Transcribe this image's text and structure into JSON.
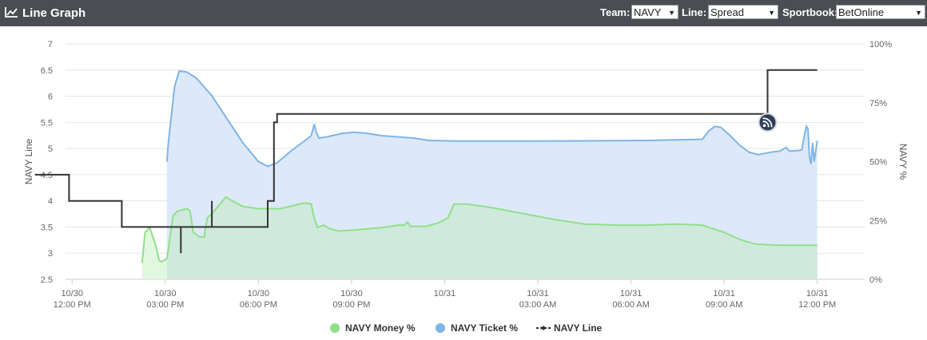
{
  "header": {
    "title": "Line Graph",
    "icon": "line-chart-icon",
    "team_label": "Team:",
    "team_value": "NAVY",
    "line_label": "Line:",
    "line_value": "Spread",
    "sportsbook_label": "Sportbook:",
    "sportsbook_value": "BetOnline"
  },
  "colors": {
    "header_bg": "#4a4d52",
    "money": "#90e08a",
    "money_fill": "#cfe9dd",
    "money_fill_early": "#e2f7df",
    "ticket": "#7fb5e6",
    "ticket_fill": "#dde9f8",
    "line": "#333333",
    "grid": "#e6e6e6"
  },
  "chart_data": {
    "type": "line",
    "xlabel": "",
    "ylabel_left": "NAVY Line",
    "ylabel_right": "NAVY %",
    "y_left_range": [
      2.5,
      7
    ],
    "y_left_ticks": [
      "2.5",
      "3",
      "3.5",
      "4",
      "4.5",
      "5",
      "5.5",
      "6",
      "6.5",
      "7"
    ],
    "y_right_range": [
      0,
      100
    ],
    "y_right_ticks": [
      "0%",
      "25%",
      "50%",
      "75%",
      "100%"
    ],
    "x_range_hours": [
      0,
      48
    ],
    "x_ticks": [
      {
        "t": 1.5,
        "l1": "10/30",
        "l2": "12:00 PM"
      },
      {
        "t": 4.5,
        "l1": "10/30",
        "l2": "03:00 PM"
      },
      {
        "t": 7.5,
        "l1": "10/30",
        "l2": "06:00 PM"
      },
      {
        "t": 10.5,
        "l1": "10/30",
        "l2": "09:00 PM"
      },
      {
        "t": 13.5,
        "l1": "10/31",
        "l2": ""
      },
      {
        "t": 16.5,
        "l1": "10/31",
        "l2": "03:00 AM"
      },
      {
        "t": 19.5,
        "l1": "10/31",
        "l2": "06:00 AM"
      },
      {
        "t": 22.5,
        "l1": "10/31",
        "l2": "09:00 AM"
      },
      {
        "t": 25.5,
        "l1": "10/31",
        "l2": "12:00 PM"
      }
    ],
    "grid": true,
    "legend_position": "bottom",
    "series": [
      {
        "name": "NAVY Money %",
        "axis": "right",
        "points": [
          [
            3.75,
            7
          ],
          [
            3.85,
            20
          ],
          [
            4.0,
            22
          ],
          [
            4.2,
            14
          ],
          [
            4.3,
            8
          ],
          [
            4.4,
            7.5
          ],
          [
            4.55,
            9
          ],
          [
            4.6,
            13
          ],
          [
            4.75,
            27
          ],
          [
            4.9,
            29
          ],
          [
            5.2,
            30
          ],
          [
            5.3,
            29
          ],
          [
            5.4,
            20
          ],
          [
            5.6,
            18
          ],
          [
            5.75,
            18
          ],
          [
            5.85,
            26
          ],
          [
            6.0,
            28
          ],
          [
            6.2,
            31
          ],
          [
            6.45,
            35
          ],
          [
            6.7,
            33
          ],
          [
            7.0,
            31
          ],
          [
            7.5,
            30
          ],
          [
            8.2,
            30
          ],
          [
            9.0,
            32.5
          ],
          [
            9.2,
            32
          ],
          [
            9.3,
            26
          ],
          [
            9.4,
            22
          ],
          [
            9.6,
            23
          ],
          [
            9.8,
            21.5
          ],
          [
            10.1,
            20.5
          ],
          [
            10.6,
            21
          ],
          [
            11.5,
            22
          ],
          [
            12.0,
            23
          ],
          [
            12.2,
            23
          ],
          [
            12.3,
            24.3
          ],
          [
            12.4,
            22.5
          ],
          [
            12.9,
            22.5
          ],
          [
            13.3,
            24
          ],
          [
            13.6,
            26
          ],
          [
            13.8,
            32
          ],
          [
            14.2,
            32
          ],
          [
            15.0,
            30.5
          ],
          [
            16.0,
            28
          ],
          [
            17.0,
            25.5
          ],
          [
            18.0,
            23.5
          ],
          [
            19.0,
            23
          ],
          [
            20.0,
            23
          ],
          [
            21.0,
            23.5
          ],
          [
            21.8,
            23
          ],
          [
            22.5,
            20
          ],
          [
            23.0,
            17
          ],
          [
            23.5,
            15
          ],
          [
            24.2,
            14.5
          ],
          [
            25.0,
            14.5
          ],
          [
            25.5,
            14.5
          ]
        ]
      },
      {
        "name": "NAVY Ticket %",
        "axis": "right",
        "points": [
          [
            4.55,
            50
          ],
          [
            4.6,
            58
          ],
          [
            4.8,
            82
          ],
          [
            4.95,
            88.5
          ],
          [
            5.2,
            88
          ],
          [
            5.5,
            85.5
          ],
          [
            6.0,
            78
          ],
          [
            6.5,
            68
          ],
          [
            7.0,
            58
          ],
          [
            7.5,
            50
          ],
          [
            7.8,
            48
          ],
          [
            8.1,
            49.5
          ],
          [
            8.5,
            54
          ],
          [
            9.0,
            59
          ],
          [
            9.2,
            61
          ],
          [
            9.3,
            66
          ],
          [
            9.35,
            63
          ],
          [
            9.45,
            60
          ],
          [
            9.7,
            60.5
          ],
          [
            10.2,
            62
          ],
          [
            10.6,
            62.5
          ],
          [
            11.0,
            62
          ],
          [
            11.5,
            61
          ],
          [
            12.0,
            60.5
          ],
          [
            12.5,
            60
          ],
          [
            13.0,
            59
          ],
          [
            14.0,
            58.7
          ],
          [
            16.0,
            58.7
          ],
          [
            18.0,
            58.8
          ],
          [
            20.0,
            59
          ],
          [
            21.8,
            59.5
          ],
          [
            22.0,
            63
          ],
          [
            22.2,
            65
          ],
          [
            22.4,
            64.5
          ],
          [
            22.7,
            61
          ],
          [
            23.0,
            57
          ],
          [
            23.3,
            54
          ],
          [
            23.6,
            53
          ],
          [
            24.0,
            54
          ],
          [
            24.3,
            54.5
          ],
          [
            24.5,
            56
          ],
          [
            24.6,
            54.5
          ],
          [
            24.9,
            54.7
          ],
          [
            25.0,
            55
          ],
          [
            25.1,
            62
          ],
          [
            25.15,
            65
          ],
          [
            25.2,
            64
          ],
          [
            25.25,
            52
          ],
          [
            25.3,
            49
          ],
          [
            25.35,
            58
          ],
          [
            25.4,
            50
          ],
          [
            25.5,
            59
          ]
        ]
      },
      {
        "name": "NAVY Line",
        "axis": "left",
        "points": [
          [
            0.3,
            4.5
          ],
          [
            1.4,
            4.5
          ],
          [
            1.4,
            4.0
          ],
          [
            3.1,
            4.0
          ],
          [
            3.1,
            3.5
          ],
          [
            4.6,
            3.5
          ],
          [
            4.6,
            3.5
          ],
          [
            5.0,
            3.5
          ],
          [
            5.0,
            3.0
          ],
          [
            5.0,
            3.5
          ],
          [
            6.0,
            3.5
          ],
          [
            6.0,
            4.0
          ],
          [
            6.0,
            3.5
          ],
          [
            7.8,
            3.5
          ],
          [
            7.8,
            4.0
          ],
          [
            8.0,
            4.0
          ],
          [
            8.0,
            5.5
          ],
          [
            8.1,
            5.5
          ],
          [
            8.1,
            5.66
          ],
          [
            23.9,
            5.66
          ],
          [
            23.9,
            6.5
          ],
          [
            25.5,
            6.5
          ]
        ],
        "markers": [
          [
            23.9,
            5.5
          ]
        ]
      }
    ]
  }
}
